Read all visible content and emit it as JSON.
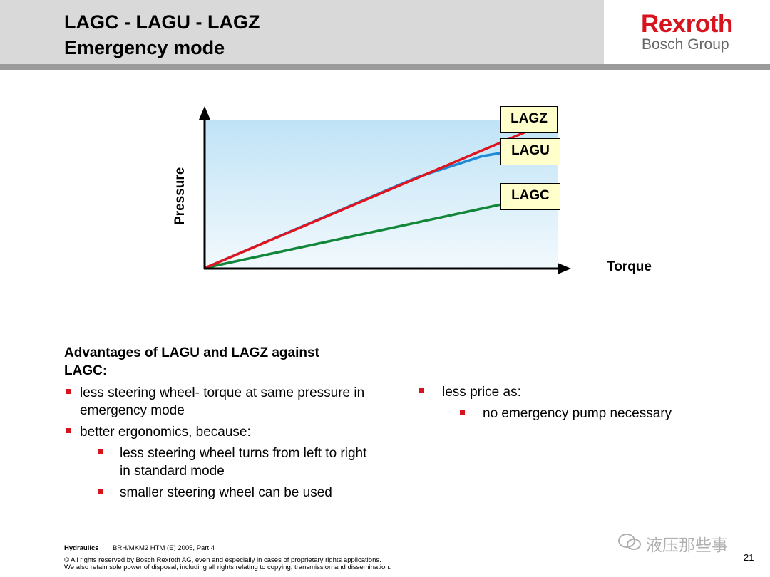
{
  "header": {
    "title_line1": "LAGC - LAGU - LAGZ",
    "title_line2": "Emergency mode",
    "logo_brand": "Rexroth",
    "logo_group": "Bosch Group"
  },
  "chart_data": {
    "type": "line",
    "xlabel": "Torque",
    "ylabel": "Pressure",
    "xlim": [
      0,
      1
    ],
    "ylim": [
      0,
      1
    ],
    "series": [
      {
        "name": "LAGZ",
        "color": "#e0141e",
        "x": [
          0,
          0.86
        ],
        "y": [
          0,
          0.93
        ]
      },
      {
        "name": "LAGU",
        "color": "#1e8ad6",
        "x": [
          0,
          0.55,
          0.72,
          0.86
        ],
        "y": [
          0,
          0.6,
          0.74,
          0.8
        ]
      },
      {
        "name": "LAGC",
        "color": "#12873a",
        "x": [
          0,
          0.86
        ],
        "y": [
          0,
          0.47
        ]
      }
    ]
  },
  "advantages": {
    "title": "Advantages of LAGU and LAGZ against LAGC:",
    "item1": "less steering wheel- torque at same pressure in emergency mode",
    "item2": "better ergonomics, because:",
    "sub1": "less steering wheel turns from left to right in standard mode",
    "sub2": "smaller steering wheel can be used",
    "item3": "less price as:",
    "sub3": "no emergency pump necessary"
  },
  "footer": {
    "dept": "Hydraulics",
    "doc": "BRH/MKM2 HTM (E) 2005, Part 4",
    "copyright1": "© All rights reserved by Bosch Rexroth AG, even and especially in cases of proprietary rights applications.",
    "copyright2": "We also retain sole power of disposal, including all rights relating to copying, transmission and dissemination.",
    "watermark": "液压那些事",
    "page": "21"
  }
}
